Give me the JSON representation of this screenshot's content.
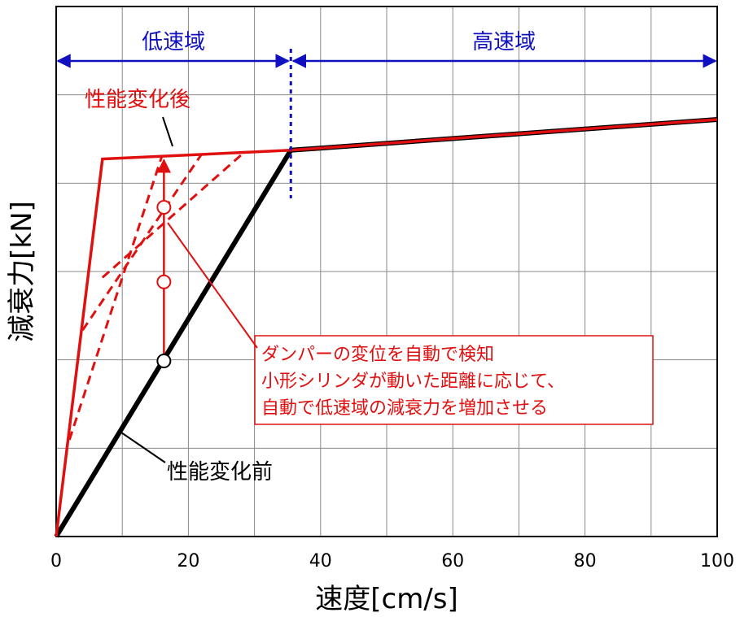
{
  "chart_data": {
    "type": "line",
    "xlabel": "速度[cm/s]",
    "ylabel": "減衰力[kN]",
    "xlim": [
      0,
      100
    ],
    "x_ticks": [
      "0",
      "20",
      "40",
      "60",
      "80",
      "100"
    ],
    "grid": true,
    "series": [
      {
        "name": "性能変化前",
        "color": "#000000",
        "style": "solid-thick",
        "points": [
          [
            0,
            0
          ],
          [
            35.5,
            88
          ],
          [
            100,
            95
          ]
        ]
      },
      {
        "name": "性能変化後",
        "color": "#e01010",
        "style": "solid",
        "points": [
          [
            0,
            0
          ],
          [
            7,
            86
          ],
          [
            35.5,
            88
          ],
          [
            100,
            95
          ]
        ]
      },
      {
        "name": "",
        "color": "#e01010",
        "style": "dashed",
        "points": [
          [
            2,
            22
          ],
          [
            16,
            86.7
          ]
        ]
      },
      {
        "name": "",
        "color": "#e01010",
        "style": "dashed",
        "points": [
          [
            4,
            47
          ],
          [
            22,
            87.1
          ]
        ]
      },
      {
        "name": "",
        "color": "#e01010",
        "style": "dashed",
        "points": [
          [
            7,
            59
          ],
          [
            28.5,
            87.6
          ]
        ]
      }
    ],
    "markers": [
      {
        "x": 16.3,
        "y": 40
      },
      {
        "x": 16.3,
        "y": 58
      },
      {
        "x": 16.3,
        "y": 75
      }
    ],
    "boundary_x": 35.5,
    "regions": [
      {
        "label": "低速域"
      },
      {
        "label": "高速域"
      }
    ],
    "annotations": {
      "after": "性能変化後",
      "before": "性能変化前",
      "description_lines": [
        "ダンパーの変位を自動で検知",
        "小形シリンダが動いた距離に応じて、",
        "自動で低速域の減衰力を増加させる"
      ]
    },
    "colors": {
      "red": "#e01010",
      "blue": "#1010c0",
      "black": "#000000",
      "grid": "#888888"
    }
  }
}
